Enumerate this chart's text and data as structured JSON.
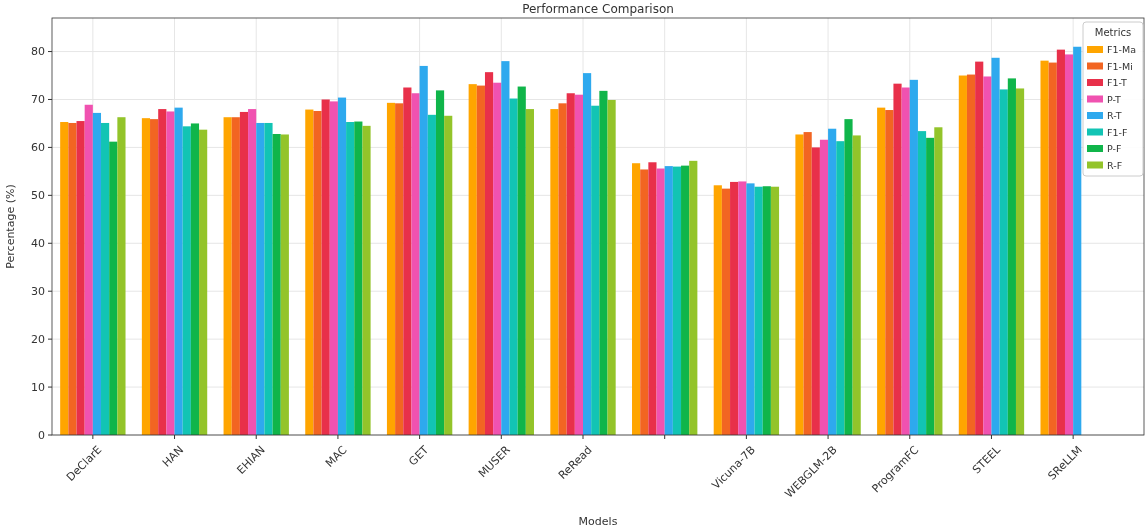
{
  "chart_data": {
    "type": "bar",
    "title": "Performance Comparison",
    "xlabel": "Models",
    "ylabel": "Percentage (%)",
    "legend_title": "Metrics",
    "categories": [
      "DeClarE",
      "HAN",
      "EHIAN",
      "MAC",
      "GET",
      "MUSER",
      "ReRead",
      null,
      "Vicuna-7B",
      "WEBGLM-2B",
      "ProgramFC",
      "STEEL",
      "SReLLM"
    ],
    "series": [
      {
        "name": "F1-Ma",
        "color": "#ffa500",
        "values": [
          65.3,
          66.1,
          66.3,
          67.9,
          69.3,
          73.2,
          68.0,
          56.7,
          52.1,
          62.7,
          68.3,
          75.0,
          78.1
        ]
      },
      {
        "name": "F1-Mi",
        "color": "#f26522",
        "values": [
          65.1,
          65.9,
          66.3,
          67.6,
          69.2,
          72.9,
          69.2,
          55.4,
          51.4,
          63.2,
          67.8,
          75.2,
          77.7
        ]
      },
      {
        "name": "F1-T",
        "color": "#e8304a",
        "values": [
          65.5,
          68.0,
          67.4,
          70.0,
          72.5,
          75.7,
          71.3,
          56.9,
          52.8,
          60.0,
          73.3,
          77.9,
          80.4
        ]
      },
      {
        "name": "P-T",
        "color": "#f052b0",
        "values": [
          68.9,
          67.5,
          68.0,
          69.6,
          71.3,
          73.5,
          71.0,
          55.6,
          52.9,
          61.6,
          72.5,
          74.8,
          79.4
        ]
      },
      {
        "name": "R-T",
        "color": "#2ea9ee",
        "values": [
          67.2,
          68.3,
          65.1,
          70.4,
          77.0,
          78.0,
          75.5,
          56.1,
          52.5,
          63.9,
          74.1,
          78.7,
          81.0
        ]
      },
      {
        "name": "F1-F",
        "color": "#12c4b4",
        "values": [
          65.1,
          64.4,
          65.1,
          65.3,
          66.8,
          70.2,
          68.7,
          56.0,
          51.8,
          61.3,
          63.4,
          72.1,
          null
        ]
      },
      {
        "name": "P-F",
        "color": "#10b54a",
        "values": [
          61.2,
          65.0,
          62.8,
          65.4,
          71.9,
          72.7,
          71.8,
          56.2,
          51.9,
          65.9,
          62.0,
          74.4,
          null
        ]
      },
      {
        "name": "R-F",
        "color": "#93c42a",
        "values": [
          66.3,
          63.7,
          62.7,
          64.5,
          66.6,
          68.0,
          69.9,
          57.2,
          51.8,
          62.5,
          64.2,
          72.3,
          null
        ]
      }
    ],
    "ylim": [
      0,
      87
    ],
    "yticks": [
      0,
      10,
      20,
      30,
      40,
      50,
      60,
      70,
      80
    ],
    "grid": true,
    "legend": "top right"
  }
}
